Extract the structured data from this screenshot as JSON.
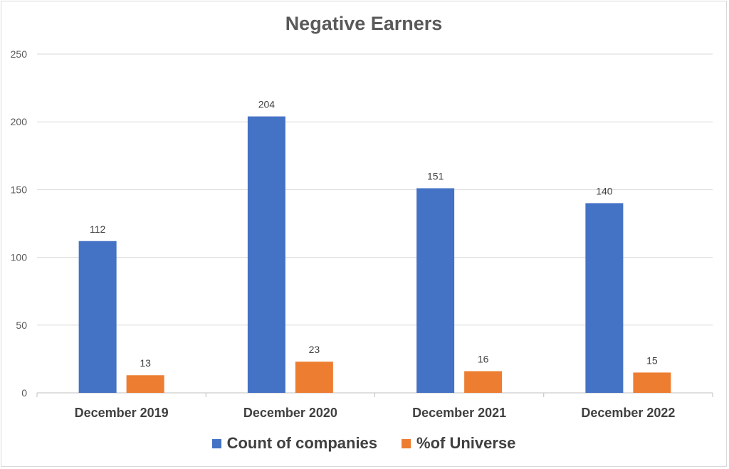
{
  "chart_data": {
    "type": "bar",
    "title": "Negative Earners",
    "categories": [
      "December 2019",
      "December 2020",
      "December 2021",
      "December 2022"
    ],
    "series": [
      {
        "name": "Count of companies",
        "values": [
          112,
          204,
          151,
          140
        ],
        "color": "#4472C4"
      },
      {
        "name": "%of Universe",
        "values": [
          13,
          23,
          16,
          15
        ],
        "color": "#ED7D31"
      }
    ],
    "ylim": [
      0,
      250
    ],
    "yticks": [
      0,
      50,
      100,
      150,
      200,
      250
    ],
    "grid": true,
    "data_labels": true,
    "legend_position": "bottom"
  }
}
